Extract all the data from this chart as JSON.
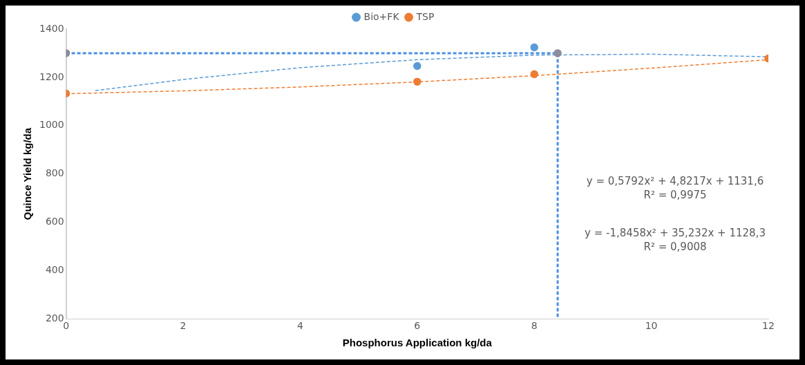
{
  "chart_data": {
    "type": "scatter",
    "xlabel": "Phosphorus Application kg/da",
    "ylabel": "Quince Yield kg/da",
    "x": [
      0,
      6,
      8,
      12
    ],
    "series": [
      {
        "name": "Bio+FK",
        "color": "#5b9bd5",
        "values": [
          null,
          1247,
          1324,
          null
        ]
      },
      {
        "name": "TSP",
        "color": "#ed7d31",
        "values": [
          1133,
          1182,
          1213,
          1278
        ]
      },
      {
        "type": "line",
        "color": "#5b9bd5",
        "x": [
          0.5,
          2,
          4,
          6,
          8,
          10,
          12
        ],
        "values": [
          1145,
          1191,
          1240,
          1273,
          1292,
          1296,
          1285
        ],
        "line_style": "dashed",
        "marker": "none"
      },
      {
        "type": "line",
        "color": "#ed7d31",
        "x": [
          0,
          2,
          4,
          6,
          8,
          10,
          12
        ],
        "values": [
          1132,
          1144,
          1160,
          1181,
          1207,
          1238,
          1273
        ],
        "line_style": "dashed",
        "marker": "none"
      },
      {
        "type": "line",
        "color": "#4a8fe0",
        "x": [
          0,
          8.4,
          8.4
        ],
        "values": [
          1300,
          1300,
          200
        ],
        "line_style": "dashed",
        "marker": "none"
      },
      {
        "color": "#8c8c9c",
        "x": [
          0,
          8.4
        ],
        "values": [
          1300,
          1300
        ]
      }
    ],
    "xlim": [
      0,
      12
    ],
    "xticks": [
      0,
      2,
      4,
      6,
      8,
      10,
      12
    ],
    "ylim": [
      200,
      1400
    ],
    "yticks": [
      200,
      400,
      600,
      800,
      1000,
      1200,
      1400
    ],
    "grid": false,
    "legend": "top",
    "marker": "circle",
    "annotations": [
      "y = 0,5792x² + 4,8217x + 1131,6",
      "R² = 0,9975",
      "y = -1,8458x² + 35,232x + 1128,3",
      "R² = 0,9008"
    ]
  }
}
